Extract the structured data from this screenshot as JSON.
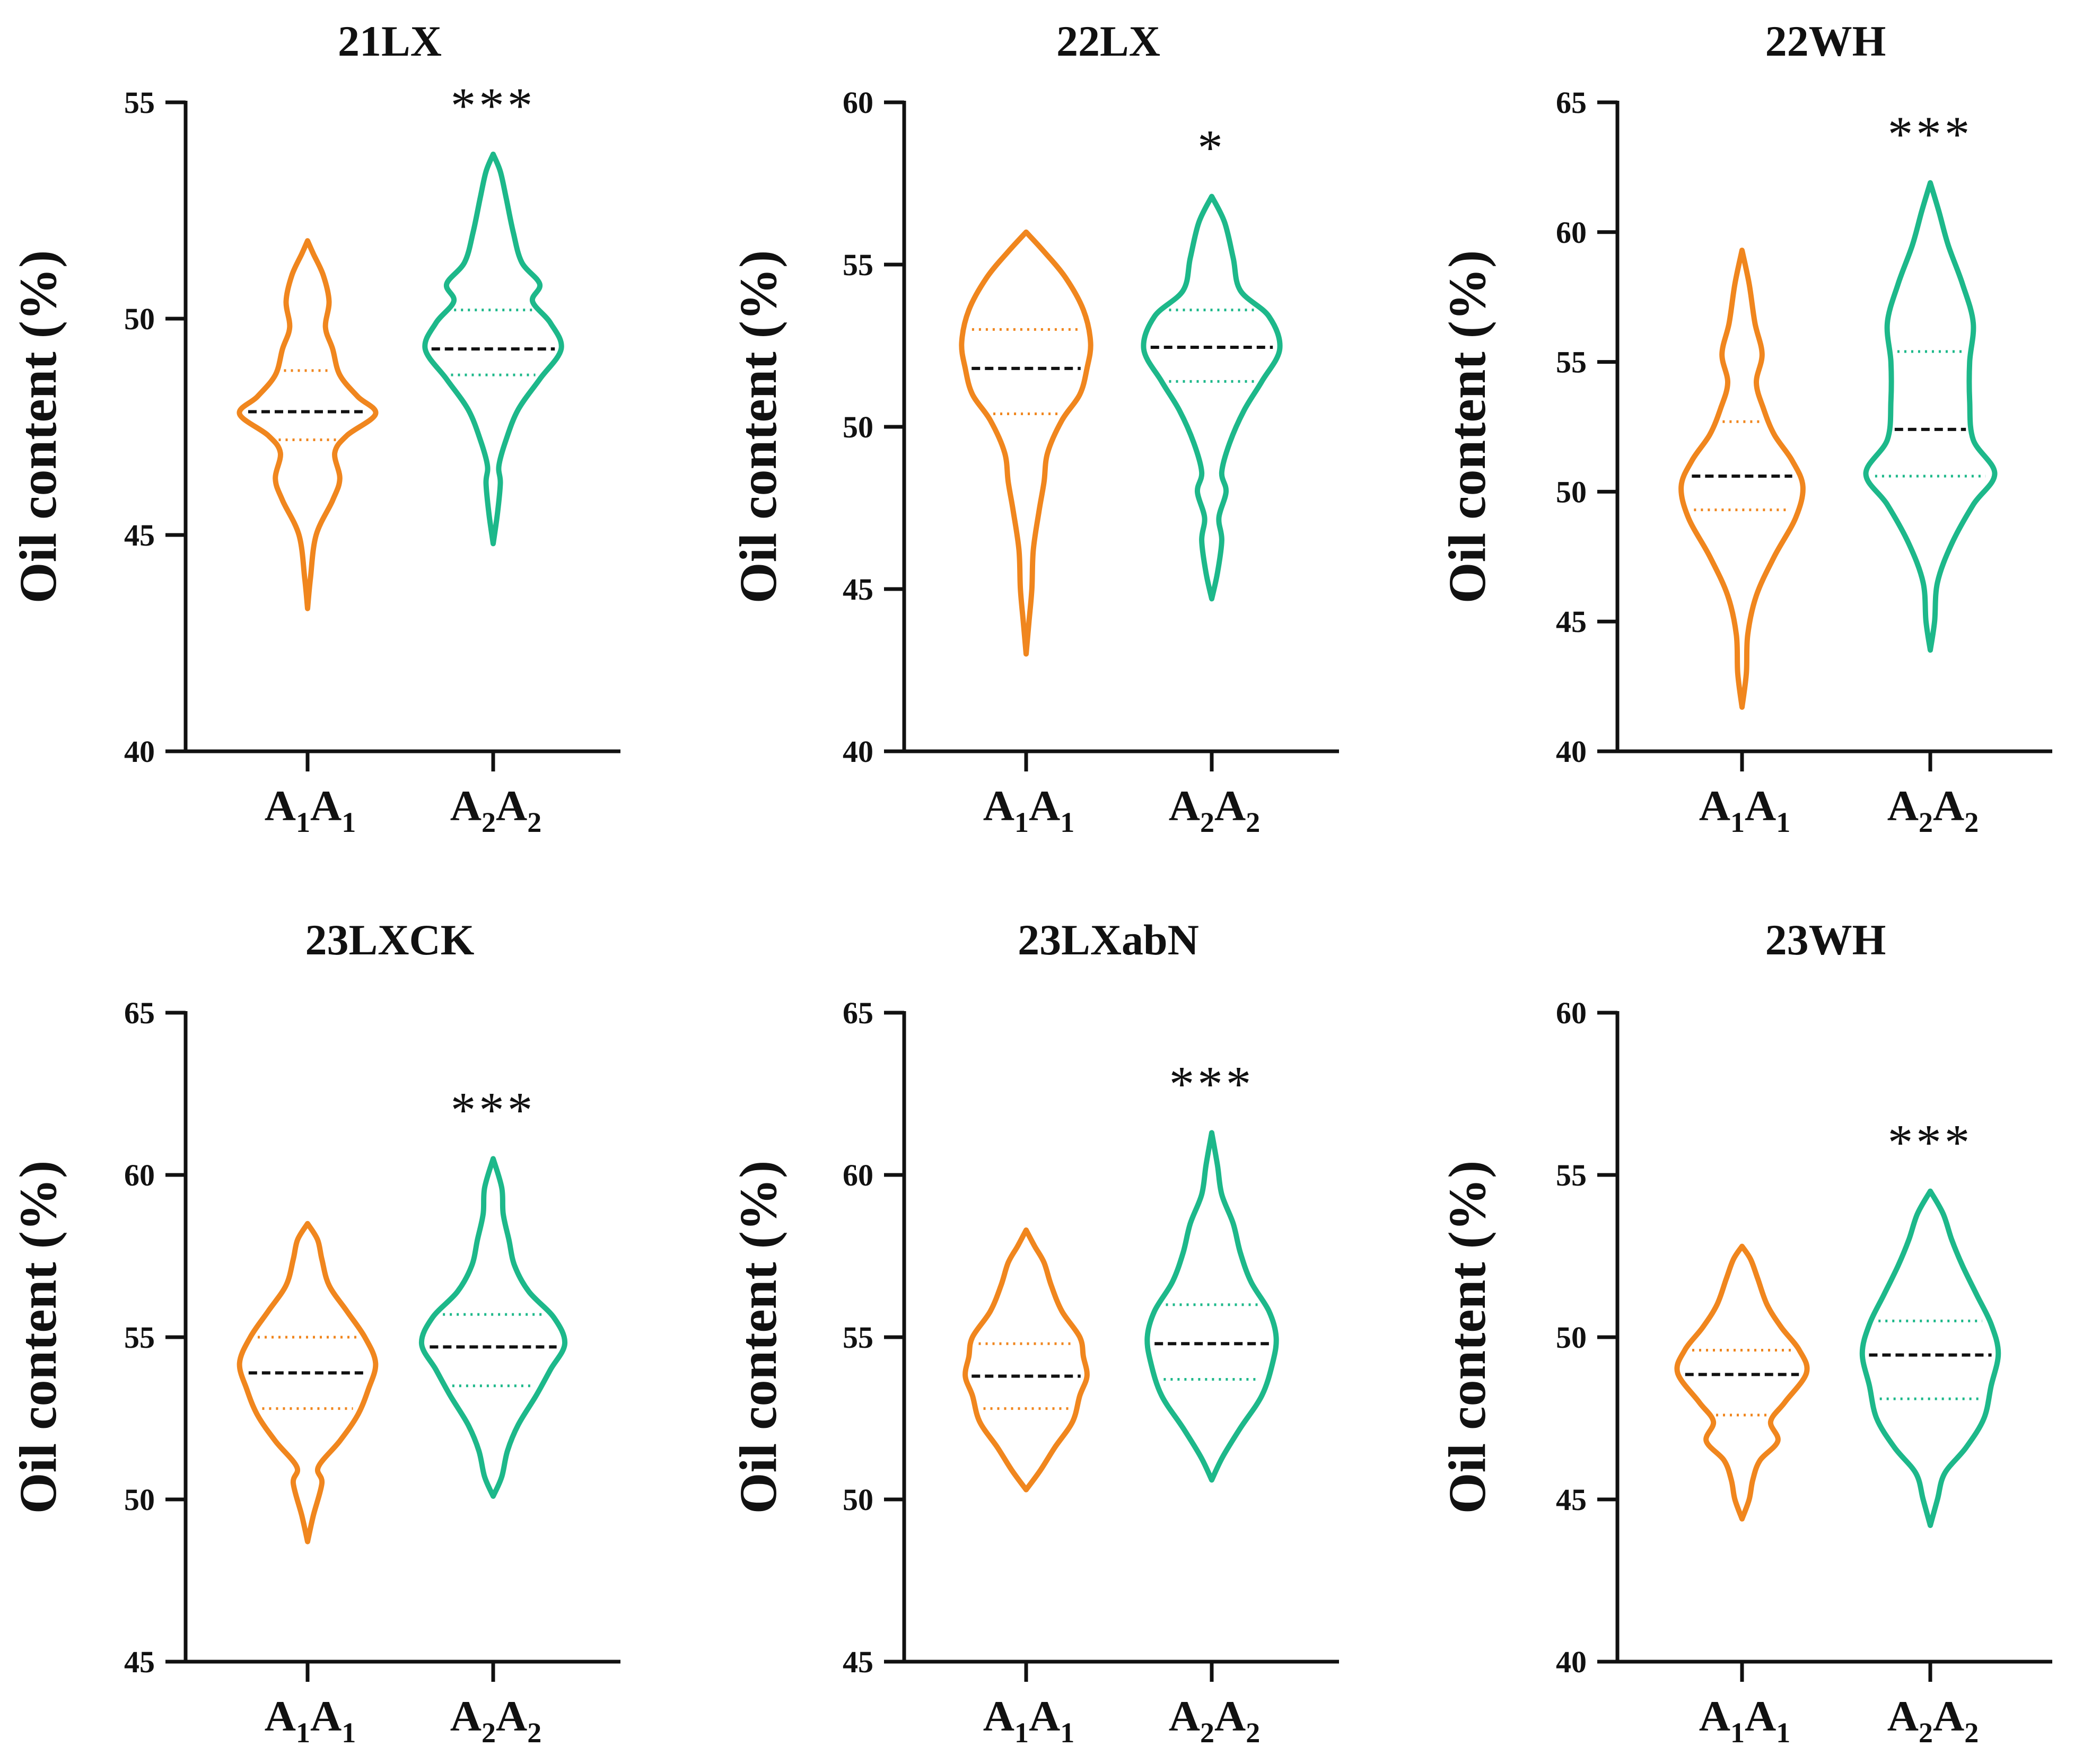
{
  "figure": {
    "description_free": true
  },
  "chart_data": [
    {
      "type": "violin",
      "title": "21LX",
      "ylabel": "Oil content (%)",
      "ylim": [
        40,
        55
      ],
      "yticks": [
        40,
        45,
        50,
        55
      ],
      "categories": [
        "A1A1",
        "A2A2"
      ],
      "category_labels": [
        {
          "base": "A",
          "sub": "1"
        },
        {
          "base": "A",
          "sub": "2"
        }
      ],
      "significance": "***",
      "series": [
        {
          "name": "A1A1",
          "color": "#F0861E",
          "median": 47.85,
          "q1": 47.2,
          "q3": 48.8,
          "min": 43.3,
          "max": 51.8,
          "profile": [
            [
              43.3,
              0
            ],
            [
              44.0,
              0.04
            ],
            [
              45.0,
              0.12
            ],
            [
              45.8,
              0.35
            ],
            [
              46.3,
              0.45
            ],
            [
              46.9,
              0.38
            ],
            [
              47.3,
              0.55
            ],
            [
              47.8,
              0.95
            ],
            [
              48.2,
              0.7
            ],
            [
              48.7,
              0.45
            ],
            [
              49.3,
              0.35
            ],
            [
              49.8,
              0.25
            ],
            [
              50.4,
              0.3
            ],
            [
              51.0,
              0.22
            ],
            [
              51.5,
              0.08
            ],
            [
              51.8,
              0
            ]
          ]
        },
        {
          "name": "A2A2",
          "color": "#1DB88A",
          "median": 49.3,
          "q1": 48.7,
          "q3": 50.2,
          "min": 44.8,
          "max": 53.8,
          "profile": [
            [
              44.8,
              0
            ],
            [
              45.5,
              0.06
            ],
            [
              46.2,
              0.1
            ],
            [
              46.6,
              0.08
            ],
            [
              47.2,
              0.18
            ],
            [
              47.9,
              0.35
            ],
            [
              48.6,
              0.65
            ],
            [
              49.3,
              0.95
            ],
            [
              49.9,
              0.8
            ],
            [
              50.4,
              0.55
            ],
            [
              50.8,
              0.65
            ],
            [
              51.3,
              0.4
            ],
            [
              52.0,
              0.28
            ],
            [
              52.8,
              0.18
            ],
            [
              53.4,
              0.1
            ],
            [
              53.8,
              0
            ]
          ]
        }
      ]
    },
    {
      "type": "violin",
      "title": "22LX",
      "ylabel": "Oil content (%)",
      "ylim": [
        40,
        60
      ],
      "yticks": [
        40,
        45,
        50,
        55,
        60
      ],
      "categories": [
        "A1A1",
        "A2A2"
      ],
      "category_labels": [
        {
          "base": "A",
          "sub": "1"
        },
        {
          "base": "A",
          "sub": "2"
        }
      ],
      "significance": "*",
      "series": [
        {
          "name": "A1A1",
          "color": "#F0861E",
          "median": 51.8,
          "q1": 50.4,
          "q3": 53.0,
          "min": 43.0,
          "max": 56.0,
          "profile": [
            [
              43.0,
              0
            ],
            [
              44.0,
              0.04
            ],
            [
              45.0,
              0.08
            ],
            [
              46.2,
              0.1
            ],
            [
              47.4,
              0.18
            ],
            [
              48.3,
              0.25
            ],
            [
              49.2,
              0.3
            ],
            [
              50.2,
              0.5
            ],
            [
              51.0,
              0.75
            ],
            [
              51.8,
              0.85
            ],
            [
              52.6,
              0.9
            ],
            [
              53.6,
              0.8
            ],
            [
              54.6,
              0.55
            ],
            [
              55.4,
              0.25
            ],
            [
              56.0,
              0
            ]
          ]
        },
        {
          "name": "A2A2",
          "color": "#1DB88A",
          "median": 52.45,
          "q1": 51.4,
          "q3": 53.6,
          "min": 44.7,
          "max": 57.1,
          "profile": [
            [
              44.7,
              0
            ],
            [
              45.5,
              0.08
            ],
            [
              46.5,
              0.14
            ],
            [
              47.2,
              0.1
            ],
            [
              48.0,
              0.2
            ],
            [
              48.6,
              0.14
            ],
            [
              49.5,
              0.25
            ],
            [
              50.5,
              0.45
            ],
            [
              51.4,
              0.7
            ],
            [
              52.4,
              0.95
            ],
            [
              53.4,
              0.8
            ],
            [
              54.2,
              0.4
            ],
            [
              55.2,
              0.3
            ],
            [
              56.3,
              0.18
            ],
            [
              57.1,
              0
            ]
          ]
        }
      ]
    },
    {
      "type": "violin",
      "title": "22WH",
      "ylabel": "Oil content (%)",
      "ylim": [
        40,
        65
      ],
      "yticks": [
        40,
        45,
        50,
        55,
        60,
        65
      ],
      "categories": [
        "A1A1",
        "A2A2"
      ],
      "category_labels": [
        {
          "base": "A",
          "sub": "1"
        },
        {
          "base": "A",
          "sub": "2"
        }
      ],
      "significance": "***",
      "series": [
        {
          "name": "A1A1",
          "color": "#F0861E",
          "median": 50.6,
          "q1": 49.3,
          "q3": 52.7,
          "min": 41.7,
          "max": 59.3,
          "profile": [
            [
              41.7,
              0
            ],
            [
              43.0,
              0.06
            ],
            [
              44.5,
              0.08
            ],
            [
              46.0,
              0.2
            ],
            [
              47.5,
              0.45
            ],
            [
              49.0,
              0.75
            ],
            [
              50.2,
              0.85
            ],
            [
              51.2,
              0.7
            ],
            [
              52.2,
              0.45
            ],
            [
              53.2,
              0.3
            ],
            [
              54.2,
              0.2
            ],
            [
              55.3,
              0.28
            ],
            [
              56.5,
              0.18
            ],
            [
              58.0,
              0.1
            ],
            [
              59.3,
              0
            ]
          ]
        },
        {
          "name": "A2A2",
          "color": "#1DB88A",
          "median": 52.4,
          "q1": 50.6,
          "q3": 55.4,
          "min": 43.9,
          "max": 61.9,
          "profile": [
            [
              43.9,
              0
            ],
            [
              45.0,
              0.06
            ],
            [
              46.5,
              0.1
            ],
            [
              48.0,
              0.3
            ],
            [
              49.5,
              0.6
            ],
            [
              50.7,
              0.9
            ],
            [
              52.0,
              0.6
            ],
            [
              53.5,
              0.55
            ],
            [
              55.0,
              0.55
            ],
            [
              56.5,
              0.6
            ],
            [
              58.0,
              0.45
            ],
            [
              59.5,
              0.25
            ],
            [
              60.8,
              0.12
            ],
            [
              61.9,
              0
            ]
          ]
        }
      ]
    },
    {
      "type": "violin",
      "title": "23LXCK",
      "ylabel": "Oil content (%)",
      "ylim": [
        45,
        65
      ],
      "yticks": [
        45,
        50,
        55,
        60,
        65
      ],
      "categories": [
        "A1A1",
        "A2A2"
      ],
      "category_labels": [
        {
          "base": "A",
          "sub": "1"
        },
        {
          "base": "A",
          "sub": "2"
        }
      ],
      "significance": "***",
      "series": [
        {
          "name": "A1A1",
          "color": "#F0861E",
          "median": 53.9,
          "q1": 52.8,
          "q3": 55.0,
          "min": 48.7,
          "max": 58.5,
          "profile": [
            [
              48.7,
              0
            ],
            [
              49.5,
              0.08
            ],
            [
              50.5,
              0.2
            ],
            [
              51.0,
              0.15
            ],
            [
              51.8,
              0.45
            ],
            [
              52.6,
              0.7
            ],
            [
              53.4,
              0.85
            ],
            [
              54.2,
              0.95
            ],
            [
              55.0,
              0.8
            ],
            [
              55.8,
              0.55
            ],
            [
              56.6,
              0.3
            ],
            [
              57.4,
              0.2
            ],
            [
              58.0,
              0.14
            ],
            [
              58.5,
              0
            ]
          ]
        },
        {
          "name": "A2A2",
          "color": "#1DB88A",
          "median": 54.7,
          "q1": 53.5,
          "q3": 55.7,
          "min": 50.1,
          "max": 60.5,
          "profile": [
            [
              50.1,
              0
            ],
            [
              50.7,
              0.12
            ],
            [
              51.5,
              0.2
            ],
            [
              52.3,
              0.35
            ],
            [
              53.2,
              0.6
            ],
            [
              54.0,
              0.8
            ],
            [
              54.8,
              1.0
            ],
            [
              55.6,
              0.85
            ],
            [
              56.4,
              0.5
            ],
            [
              57.2,
              0.3
            ],
            [
              58.0,
              0.22
            ],
            [
              58.8,
              0.14
            ],
            [
              59.6,
              0.12
            ],
            [
              60.5,
              0
            ]
          ]
        }
      ]
    },
    {
      "type": "violin",
      "title": "23LXabN",
      "ylabel": "Oil content (%)",
      "ylim": [
        45,
        65
      ],
      "yticks": [
        45,
        50,
        55,
        60,
        65
      ],
      "categories": [
        "A1A1",
        "A2A2"
      ],
      "category_labels": [
        {
          "base": "A",
          "sub": "1"
        },
        {
          "base": "A",
          "sub": "2"
        }
      ],
      "significance": "***",
      "series": [
        {
          "name": "A1A1",
          "color": "#F0861E",
          "median": 53.8,
          "q1": 52.8,
          "q3": 54.8,
          "min": 50.3,
          "max": 58.3,
          "profile": [
            [
              50.3,
              0
            ],
            [
              50.9,
              0.2
            ],
            [
              51.6,
              0.4
            ],
            [
              52.4,
              0.65
            ],
            [
              53.2,
              0.75
            ],
            [
              53.8,
              0.85
            ],
            [
              54.4,
              0.8
            ],
            [
              55.0,
              0.75
            ],
            [
              55.8,
              0.5
            ],
            [
              56.6,
              0.35
            ],
            [
              57.3,
              0.25
            ],
            [
              57.8,
              0.12
            ],
            [
              58.3,
              0
            ]
          ]
        },
        {
          "name": "A2A2",
          "color": "#1DB88A",
          "median": 54.8,
          "q1": 53.7,
          "q3": 56.0,
          "min": 50.6,
          "max": 61.3,
          "profile": [
            [
              50.6,
              0
            ],
            [
              51.3,
              0.15
            ],
            [
              52.2,
              0.4
            ],
            [
              53.2,
              0.7
            ],
            [
              54.2,
              0.85
            ],
            [
              55.0,
              0.9
            ],
            [
              55.8,
              0.8
            ],
            [
              56.7,
              0.55
            ],
            [
              57.6,
              0.4
            ],
            [
              58.5,
              0.3
            ],
            [
              59.4,
              0.14
            ],
            [
              60.3,
              0.08
            ],
            [
              61.3,
              0
            ]
          ]
        }
      ]
    },
    {
      "type": "violin",
      "title": "23WH",
      "ylabel": "Oil content (%)",
      "ylim": [
        40,
        60
      ],
      "yticks": [
        40,
        45,
        50,
        55,
        60
      ],
      "categories": [
        "A1A1",
        "A2A2"
      ],
      "category_labels": [
        {
          "base": "A",
          "sub": "1"
        },
        {
          "base": "A",
          "sub": "2"
        }
      ],
      "significance": "***",
      "series": [
        {
          "name": "A1A1",
          "color": "#F0861E",
          "median": 48.85,
          "q1": 47.6,
          "q3": 49.6,
          "min": 44.4,
          "max": 52.8,
          "profile": [
            [
              44.4,
              0
            ],
            [
              45.0,
              0.1
            ],
            [
              45.6,
              0.15
            ],
            [
              46.2,
              0.25
            ],
            [
              46.8,
              0.5
            ],
            [
              47.4,
              0.4
            ],
            [
              48.0,
              0.6
            ],
            [
              48.9,
              0.9
            ],
            [
              49.6,
              0.8
            ],
            [
              50.3,
              0.55
            ],
            [
              51.0,
              0.35
            ],
            [
              51.8,
              0.22
            ],
            [
              52.4,
              0.12
            ],
            [
              52.8,
              0
            ]
          ]
        },
        {
          "name": "A2A2",
          "color": "#1DB88A",
          "median": 49.45,
          "q1": 48.1,
          "q3": 50.5,
          "min": 44.2,
          "max": 54.5,
          "profile": [
            [
              44.2,
              0
            ],
            [
              45.0,
              0.1
            ],
            [
              45.8,
              0.2
            ],
            [
              46.6,
              0.5
            ],
            [
              47.5,
              0.75
            ],
            [
              48.5,
              0.85
            ],
            [
              49.5,
              0.95
            ],
            [
              50.4,
              0.85
            ],
            [
              51.3,
              0.65
            ],
            [
              52.2,
              0.45
            ],
            [
              53.0,
              0.3
            ],
            [
              53.8,
              0.18
            ],
            [
              54.5,
              0
            ]
          ]
        }
      ]
    }
  ]
}
